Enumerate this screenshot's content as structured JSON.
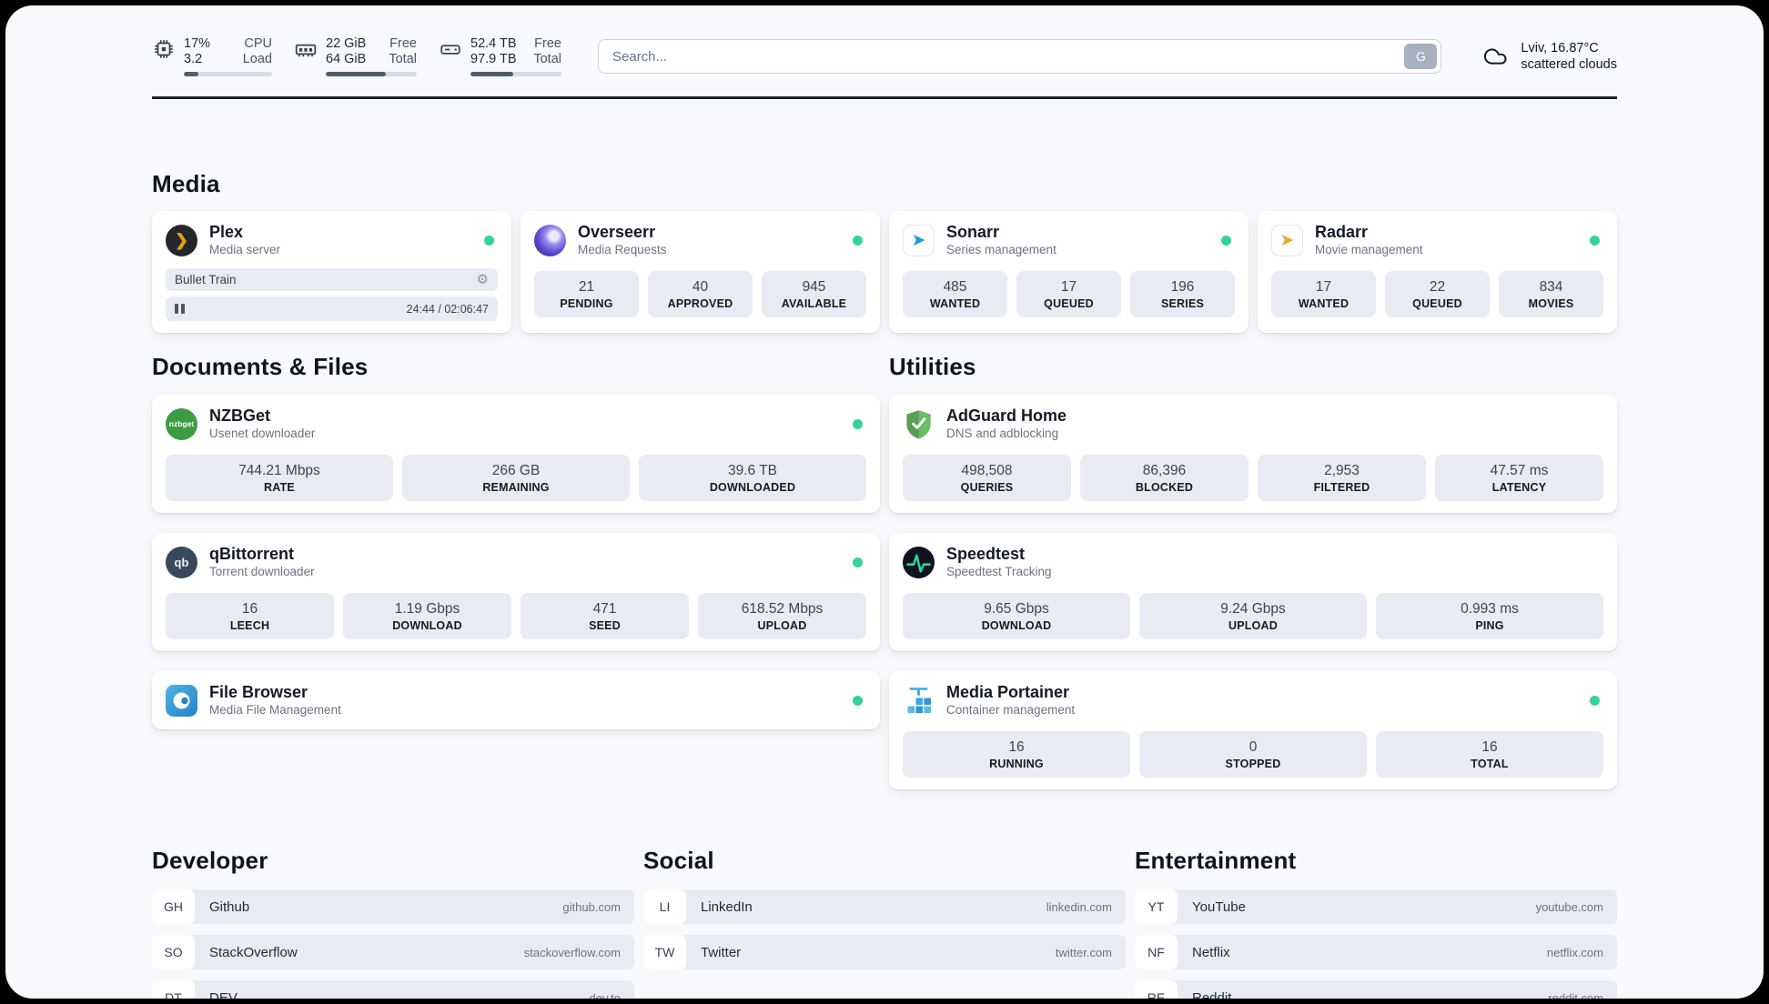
{
  "colors": {
    "status_online": "#34d399"
  },
  "topbar": {
    "cpu": {
      "value1": "17%",
      "value2": "3.2",
      "label1": "CPU",
      "label2": "Load",
      "percent": 17
    },
    "memory": {
      "value1": "22 GiB",
      "value2": "64 GiB",
      "label1": "Free",
      "label2": "Total",
      "percent": 66
    },
    "disk": {
      "value1": "52.4 TB",
      "value2": "97.9 TB",
      "label1": "Free",
      "label2": "Total",
      "percent": 47
    },
    "search": {
      "placeholder": "Search...",
      "button_label": "G"
    },
    "weather": {
      "location": "Lviv, 16.87°C",
      "condition": "scattered clouds"
    }
  },
  "media": {
    "heading": "Media",
    "plex": {
      "title": "Plex",
      "subtitle": "Media server",
      "now_playing": "Bullet Train",
      "time": "24:44 / 02:06:47"
    },
    "overseerr": {
      "title": "Overseerr",
      "subtitle": "Media Requests",
      "stats": [
        {
          "value": "21",
          "label": "PENDING"
        },
        {
          "value": "40",
          "label": "APPROVED"
        },
        {
          "value": "945",
          "label": "AVAILABLE"
        }
      ]
    },
    "sonarr": {
      "title": "Sonarr",
      "subtitle": "Series management",
      "stats": [
        {
          "value": "485",
          "label": "WANTED"
        },
        {
          "value": "17",
          "label": "QUEUED"
        },
        {
          "value": "196",
          "label": "SERIES"
        }
      ]
    },
    "radarr": {
      "title": "Radarr",
      "subtitle": "Movie management",
      "stats": [
        {
          "value": "17",
          "label": "WANTED"
        },
        {
          "value": "22",
          "label": "QUEUED"
        },
        {
          "value": "834",
          "label": "MOVIES"
        }
      ]
    }
  },
  "documents": {
    "heading": "Documents & Files",
    "nzbget": {
      "title": "NZBGet",
      "subtitle": "Usenet downloader",
      "icon_text": "nzbget",
      "stats": [
        {
          "value": "744.21 Mbps",
          "label": "RATE"
        },
        {
          "value": "266 GB",
          "label": "REMAINING"
        },
        {
          "value": "39.6 TB",
          "label": "DOWNLOADED"
        }
      ]
    },
    "qbittorrent": {
      "title": "qBittorrent",
      "subtitle": "Torrent downloader",
      "icon_text": "qb",
      "stats": [
        {
          "value": "16",
          "label": "LEECH"
        },
        {
          "value": "1.19 Gbps",
          "label": "DOWNLOAD"
        },
        {
          "value": "471",
          "label": "SEED"
        },
        {
          "value": "618.52 Mbps",
          "label": "UPLOAD"
        }
      ]
    },
    "filebrowser": {
      "title": "File Browser",
      "subtitle": "Media File Management"
    }
  },
  "utilities": {
    "heading": "Utilities",
    "adguard": {
      "title": "AdGuard Home",
      "subtitle": "DNS and adblocking",
      "stats": [
        {
          "value": "498,508",
          "label": "QUERIES"
        },
        {
          "value": "86,396",
          "label": "BLOCKED"
        },
        {
          "value": "2,953",
          "label": "FILTERED"
        },
        {
          "value": "47.57 ms",
          "label": "LATENCY"
        }
      ]
    },
    "speedtest": {
      "title": "Speedtest",
      "subtitle": "Speedtest Tracking",
      "stats": [
        {
          "value": "9.65 Gbps",
          "label": "DOWNLOAD"
        },
        {
          "value": "9.24 Gbps",
          "label": "UPLOAD"
        },
        {
          "value": "0.993 ms",
          "label": "PING"
        }
      ]
    },
    "portainer": {
      "title": "Media Portainer",
      "subtitle": "Container management",
      "stats": [
        {
          "value": "16",
          "label": "RUNNING"
        },
        {
          "value": "0",
          "label": "STOPPED"
        },
        {
          "value": "16",
          "label": "TOTAL"
        }
      ]
    }
  },
  "bookmarks": {
    "developer": {
      "heading": "Developer",
      "items": [
        {
          "abbr": "GH",
          "name": "Github",
          "domain": "github.com"
        },
        {
          "abbr": "SO",
          "name": "StackOverflow",
          "domain": "stackoverflow.com"
        },
        {
          "abbr": "DT",
          "name": "DEV",
          "domain": "dev.to"
        }
      ]
    },
    "social": {
      "heading": "Social",
      "items": [
        {
          "abbr": "LI",
          "name": "LinkedIn",
          "domain": "linkedin.com"
        },
        {
          "abbr": "TW",
          "name": "Twitter",
          "domain": "twitter.com"
        }
      ]
    },
    "entertainment": {
      "heading": "Entertainment",
      "items": [
        {
          "abbr": "YT",
          "name": "YouTube",
          "domain": "youtube.com"
        },
        {
          "abbr": "NF",
          "name": "Netflix",
          "domain": "netflix.com"
        },
        {
          "abbr": "RE",
          "name": "Reddit",
          "domain": "reddit.com"
        }
      ]
    }
  }
}
